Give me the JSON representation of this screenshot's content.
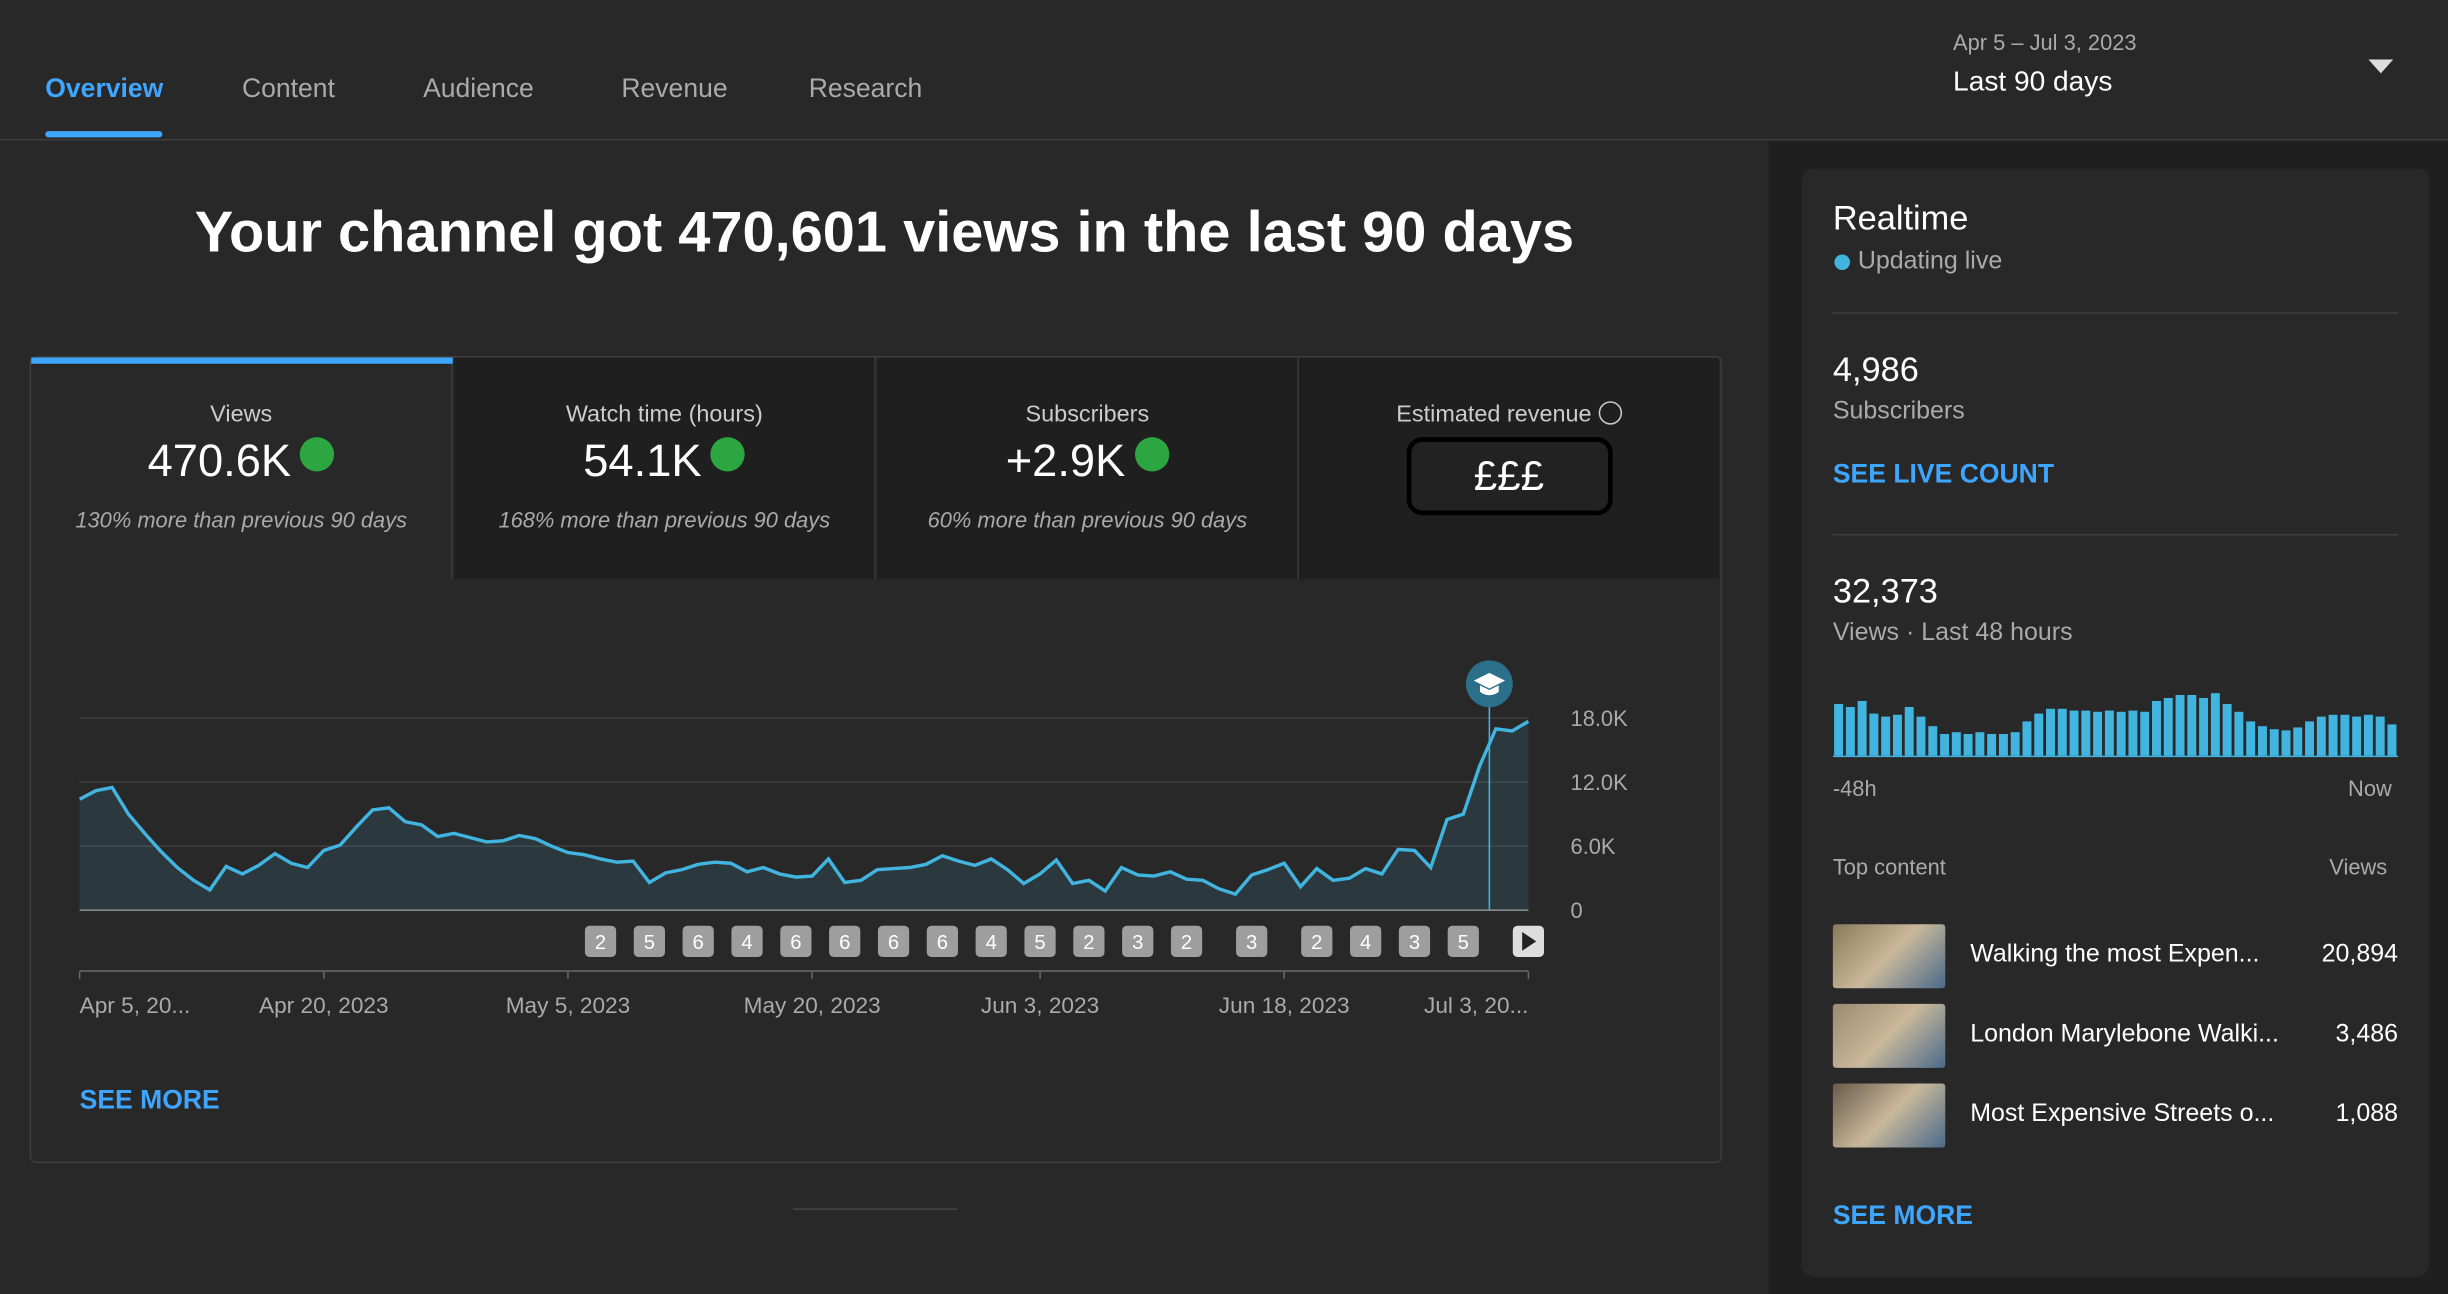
{
  "tabs": [
    "Overview",
    "Content",
    "Audience",
    "Revenue",
    "Research"
  ],
  "date_range": {
    "range": "Apr 5 – Jul 3, 2023",
    "label": "Last 90 days"
  },
  "headline": "Your channel got 470,601 views in the last 90 days",
  "metrics": [
    {
      "label": "Views",
      "value": "470.6K",
      "note": "130% more than previous 90 days"
    },
    {
      "label": "Watch time (hours)",
      "value": "54.1K",
      "note": "168% more than previous 90 days"
    },
    {
      "label": "Subscribers",
      "value": "+2.9K",
      "note": "60% more than previous 90 days"
    },
    {
      "label": "Estimated revenue",
      "value": "£££"
    }
  ],
  "chart": {
    "type": "line",
    "color": "#41b4e0",
    "values": [
      10400,
      11200,
      11500,
      9000,
      7200,
      5500,
      4000,
      2800,
      1900,
      4100,
      3400,
      4200,
      5300,
      4400,
      4000,
      5600,
      6100,
      7800,
      9400,
      9600,
      8300,
      8000,
      6900,
      7200,
      6800,
      6400,
      6500,
      7000,
      6700,
      6000,
      5400,
      5200,
      4800,
      4500,
      4600,
      2600,
      3500,
      3800,
      4300,
      4500,
      4400,
      3600,
      4000,
      3400,
      3100,
      3200,
      4800,
      2600,
      2800,
      3800,
      3900,
      4000,
      4300,
      5100,
      4600,
      4200,
      4800,
      3800,
      2500,
      3400,
      4700,
      2500,
      2800,
      1800,
      4000,
      3300,
      3200,
      3600,
      2900,
      2800,
      2000,
      1500,
      3300,
      3800,
      4400,
      2200,
      3900,
      2800,
      3000,
      3900,
      3400,
      5700,
      5600,
      4000,
      8500,
      9000,
      13500,
      17000,
      16800,
      17700
    ],
    "xlim": [
      0,
      89
    ],
    "ylim": [
      0,
      18000
    ],
    "yticks": [
      0,
      {
        "value": 6000,
        "label": "6.0K"
      },
      {
        "value": 12000,
        "label": "12.0K"
      },
      {
        "value": 18000,
        "label": "18.0K"
      }
    ],
    "xticks": [
      {
        "value": 0,
        "label": "Apr 5, 20..."
      },
      {
        "value": 15,
        "label": "Apr 20, 2023"
      },
      {
        "value": 30,
        "label": "May 5, 2023"
      },
      {
        "value": 45,
        "label": "May 20, 2023"
      },
      {
        "value": 59,
        "label": "Jun 3, 2023"
      },
      {
        "value": 74,
        "label": "Jun 18, 2023"
      },
      {
        "value": 89,
        "label": "Jul 3, 20..."
      }
    ],
    "uploads": {
      "x": [
        32,
        35,
        38,
        41,
        44,
        47,
        50,
        53,
        56,
        59,
        62,
        65,
        68,
        72,
        76,
        79,
        82,
        85
      ],
      "counts": [
        2,
        5,
        6,
        4,
        6,
        6,
        6,
        6,
        4,
        5,
        2,
        3,
        2,
        3,
        2,
        4,
        3,
        5
      ]
    }
  },
  "see_more": "SEE MORE",
  "realtime": {
    "title": "Realtime",
    "status": "Updating live",
    "subscribers": "4,986",
    "subscribers_label": "Subscribers",
    "live_count": "SEE LIVE COUNT",
    "views": "32,373",
    "views_label": "Views · Last 48 hours",
    "bars": {
      "type": "bar",
      "color": "#41b4e0",
      "values": [
        860,
        810,
        910,
        700,
        650,
        680,
        810,
        650,
        490,
        360,
        390,
        360,
        390,
        360,
        360,
        390,
        570,
        700,
        780,
        780,
        750,
        750,
        730,
        750,
        730,
        750,
        730,
        910,
        960,
        1010,
        1010,
        960,
        1040,
        860,
        730,
        570,
        490,
        440,
        420,
        470,
        570,
        650,
        680,
        680,
        650,
        680,
        650,
        520
      ],
      "start": "-48h",
      "end": "Now"
    },
    "top_content": {
      "title": "Top content",
      "column": "Views",
      "items": [
        {
          "title": "Walking the most Expen...",
          "views": "20,894"
        },
        {
          "title": "London Marylebone Walki...",
          "views": "3,486"
        },
        {
          "title": "Most Expensive Streets o...",
          "views": "1,088"
        }
      ]
    },
    "see_more": "SEE MORE"
  }
}
